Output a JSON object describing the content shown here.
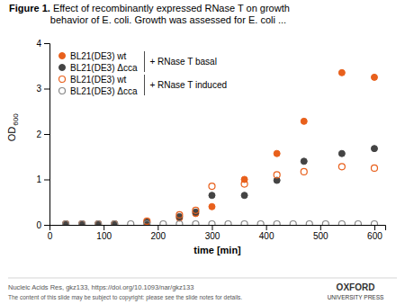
{
  "chart_data": {
    "type": "scatter",
    "title": "Figure 1.",
    "subtitle": " Effect of recombinantly expressed RNase T on growth\nbehavior of E. coli. Growth was assessed for E. coli ...",
    "x_label": "time [min]",
    "y_label": {
      "text": "OD",
      "sub": "600"
    },
    "xlim": [
      0,
      620
    ],
    "ylim": [
      0,
      4.0
    ],
    "xticks": [
      0,
      100,
      200,
      300,
      400,
      500,
      600
    ],
    "yticks": [
      0,
      1,
      2,
      3,
      4
    ],
    "grid": false,
    "legend": "upper left",
    "series": [
      {
        "name": "BL21(DE3) wt",
        "color": "#E8601C",
        "marker": "circle",
        "x": [
          30,
          60,
          90,
          120,
          180,
          240,
          270,
          300,
          360,
          420,
          470,
          540,
          600
        ],
        "values": [
          0.02,
          0.02,
          0.02,
          0.02,
          0.05,
          0.15,
          0.25,
          0.4,
          1.0,
          1.57,
          2.28,
          3.35,
          3.25
        ]
      },
      {
        "name": "BL21(DE3) Δcca",
        "color": "#444444",
        "marker": "circle",
        "x": [
          30,
          60,
          90,
          120,
          180,
          240,
          270,
          300,
          360,
          420,
          470,
          540,
          600
        ],
        "values": [
          0.02,
          0.02,
          0.02,
          0.02,
          0.06,
          0.18,
          0.28,
          0.65,
          0.65,
          0.98,
          1.4,
          1.57,
          1.68
        ]
      },
      {
        "name": "BL21(DE3) wt",
        "color": "#E8601C",
        "marker": "circle-open",
        "x": [
          30,
          60,
          90,
          120,
          180,
          240,
          270,
          300,
          360,
          420,
          470,
          540,
          600
        ],
        "values": [
          0.02,
          0.02,
          0.02,
          0.02,
          0.08,
          0.22,
          0.32,
          0.85,
          0.9,
          1.1,
          1.17,
          1.28,
          1.25
        ]
      },
      {
        "name": "BL21(DE3) Δcca",
        "color": "#888888",
        "marker": "circle-open",
        "x": [
          30,
          60,
          90,
          120,
          150,
          180,
          210,
          240,
          270,
          300,
          330,
          360,
          390,
          420,
          450,
          480,
          510,
          540,
          570,
          600
        ],
        "values": [
          0.02,
          0.02,
          0.02,
          0.02,
          0.02,
          0.02,
          0.02,
          0.02,
          0.02,
          0.02,
          0.02,
          0.02,
          0.02,
          0.02,
          0.02,
          0.02,
          0.02,
          0.02,
          0.02,
          0.02
        ]
      }
    ],
    "annotations": [
      "+ RNase T basal",
      "+ RNase T induced",
      "Nucleic Acids Res, gkz133, https://doi.org/10.1093/nar/gkz133",
      "The content of this slide may be subject to copyright: please see the slide notes for details.",
      "OXFORD",
      "UNIVERSITY PRESS"
    ]
  }
}
